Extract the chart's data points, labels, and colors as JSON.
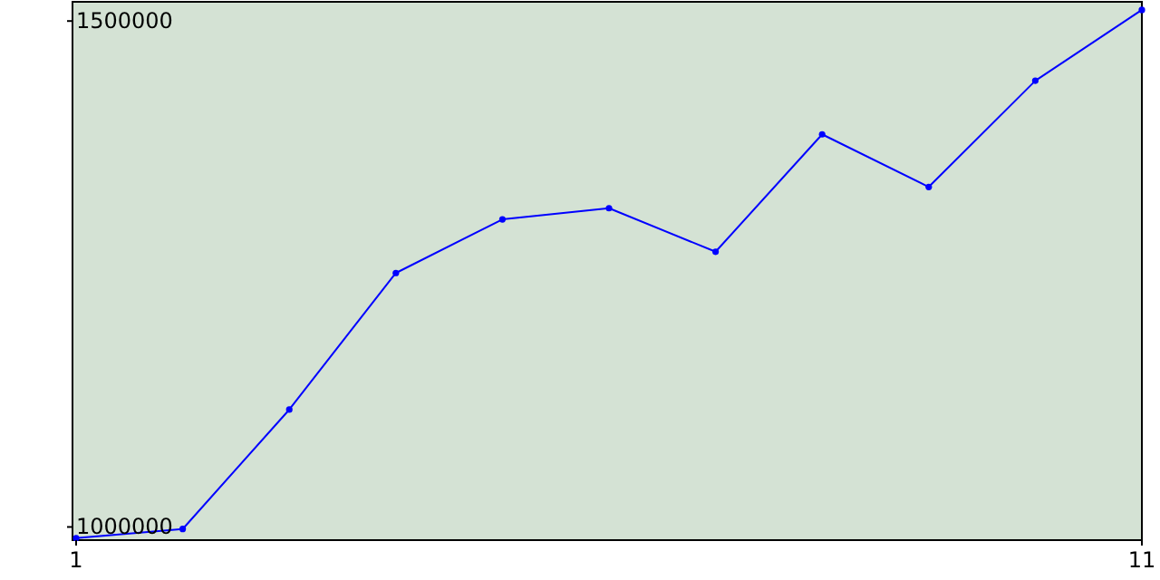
{
  "chart_data": {
    "type": "line",
    "x": [
      1,
      2,
      3,
      4,
      5,
      6,
      7,
      8,
      9,
      10,
      11
    ],
    "series": [
      {
        "color": "#0000ff",
        "values": [
          989000,
          998000,
          1116000,
          1251000,
          1304000,
          1315000,
          1272000,
          1388000,
          1336000,
          1441000,
          1511000
        ]
      }
    ],
    "xlim": [
      1,
      11
    ],
    "xticks": [
      1,
      11
    ],
    "ylim": [
      987000,
      1519000
    ],
    "yticks": [
      1000000,
      1500000
    ],
    "grid": false,
    "marker": "circle",
    "line_style": "solid"
  }
}
